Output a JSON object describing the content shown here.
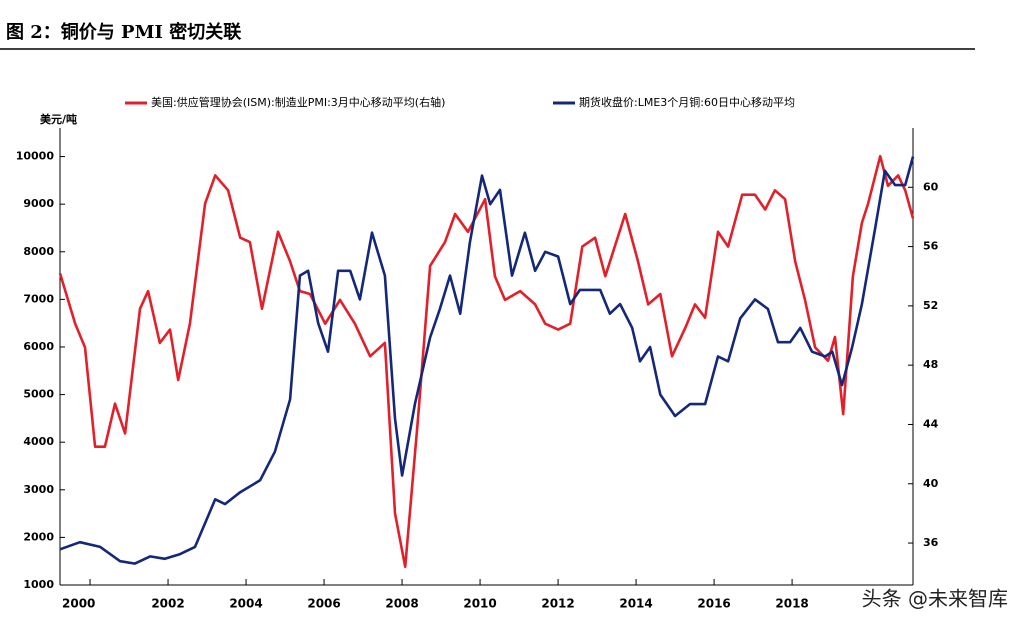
{
  "header": {
    "title": "图 2：铜价与 PMI 密切关联"
  },
  "watermark": "头条 @未来智库",
  "chart_data": {
    "type": "line",
    "y_label": "美元/吨",
    "xlim": [
      1999.23,
      2021.1
    ],
    "xticks": [
      2000,
      2002,
      2004,
      2006,
      2008,
      2010,
      2012,
      2014,
      2016,
      2018
    ],
    "ylim": [
      1000,
      10600
    ],
    "yticks": [
      1000,
      2000,
      3000,
      4000,
      5000,
      6000,
      7000,
      8000,
      9000,
      10000
    ],
    "y2lim": [
      33.17,
      64
    ],
    "y2ticks": [
      36,
      40,
      44,
      48,
      52,
      56,
      60
    ],
    "series": [
      {
        "name": "美国:供应管理协会(ISM):制造业PMI:3月中心移动平均(右轴)",
        "color": "#e3202a",
        "axis": "y2",
        "x": [
          1999.23,
          1999.62,
          1999.87,
          2000.13,
          2000.38,
          2000.64,
          2000.9,
          2001.28,
          2001.49,
          2001.79,
          2002.05,
          2002.26,
          2002.56,
          2002.95,
          2003.21,
          2003.54,
          2003.85,
          2004.1,
          2004.41,
          2004.82,
          2005.13,
          2005.38,
          2005.64,
          2006.03,
          2006.41,
          2006.79,
          2007.18,
          2007.56,
          2007.82,
          2008.08,
          2008.41,
          2008.72,
          2009.1,
          2009.36,
          2009.69,
          2010.13,
          2010.38,
          2010.64,
          2011.03,
          2011.41,
          2011.67,
          2012.0,
          2012.31,
          2012.62,
          2012.95,
          2013.21,
          2013.72,
          2014.05,
          2014.31,
          2014.62,
          2014.92,
          2015.26,
          2015.51,
          2015.77,
          2016.1,
          2016.36,
          2016.72,
          2017.05,
          2017.31,
          2017.56,
          2017.82,
          2018.08,
          2018.33,
          2018.59,
          2018.92,
          2019.1,
          2019.31,
          2019.56,
          2019.79,
          2019.95,
          2020.26,
          2020.46,
          2020.72,
          2020.9,
          2021.1
        ],
        "values": [
          54.2,
          50.8,
          49.2,
          42.5,
          42.5,
          45.4,
          43.4,
          51.8,
          53.0,
          49.5,
          50.4,
          47.0,
          50.8,
          58.9,
          60.8,
          59.8,
          56.6,
          56.3,
          51.8,
          57.0,
          55.0,
          53.0,
          52.8,
          50.8,
          52.4,
          50.8,
          48.6,
          49.5,
          38.0,
          34.4,
          44.4,
          54.7,
          56.3,
          58.2,
          57.0,
          59.2,
          54.0,
          52.4,
          53.0,
          52.1,
          50.8,
          50.4,
          50.8,
          56.0,
          56.6,
          54.0,
          58.2,
          55.0,
          52.1,
          52.8,
          48.6,
          50.5,
          52.1,
          51.2,
          57.0,
          56.0,
          59.5,
          59.5,
          58.5,
          59.8,
          59.2,
          55.0,
          52.4,
          49.2,
          48.3,
          49.9,
          44.7,
          54.0,
          57.6,
          58.9,
          62.1,
          60.1,
          60.8,
          59.8,
          57.9
        ]
      },
      {
        "name": "期货收盘价:LME3个月铜:60日中心移动平均",
        "color": "#14287a",
        "x": [
          1999.23,
          1999.74,
          2000.26,
          2000.77,
          2001.15,
          2001.54,
          2001.92,
          2002.31,
          2002.69,
          2002.95,
          2003.21,
          2003.46,
          2003.85,
          2004.36,
          2004.74,
          2005.13,
          2005.38,
          2005.59,
          2005.85,
          2006.1,
          2006.36,
          2006.67,
          2006.92,
          2007.23,
          2007.56,
          2007.82,
          2008.0,
          2008.33,
          2008.72,
          2008.97,
          2009.23,
          2009.49,
          2009.74,
          2010.05,
          2010.26,
          2010.51,
          2010.82,
          2011.15,
          2011.41,
          2011.67,
          2012.0,
          2012.31,
          2012.56,
          2013.08,
          2013.33,
          2013.59,
          2013.9,
          2014.1,
          2014.36,
          2014.62,
          2015.0,
          2015.38,
          2015.77,
          2016.1,
          2016.36,
          2016.67,
          2017.05,
          2017.38,
          2017.64,
          2017.95,
          2018.21,
          2018.51,
          2018.85,
          2019.03,
          2019.28,
          2019.54,
          2019.79,
          2020.13,
          2020.38,
          2020.64,
          2020.9,
          2021.1
        ],
        "values": [
          1750,
          1900,
          1800,
          1500,
          1450,
          1600,
          1550,
          1650,
          1800,
          2300,
          2800,
          2700,
          2950,
          3200,
          3800,
          4900,
          7500,
          7600,
          6500,
          5900,
          7600,
          7600,
          7000,
          8400,
          7500,
          4500,
          3300,
          4800,
          6200,
          6800,
          7500,
          6700,
          8200,
          9600,
          9000,
          9300,
          7500,
          8400,
          7600,
          8000,
          7900,
          6900,
          7200,
          7200,
          6700,
          6900,
          6400,
          5700,
          6000,
          5000,
          4550,
          4800,
          4800,
          5800,
          5700,
          6600,
          7000,
          6800,
          6100,
          6100,
          6400,
          5900,
          5800,
          5900,
          5200,
          6000,
          6900,
          8500,
          9700,
          9400,
          9400,
          10000
        ]
      }
    ]
  }
}
